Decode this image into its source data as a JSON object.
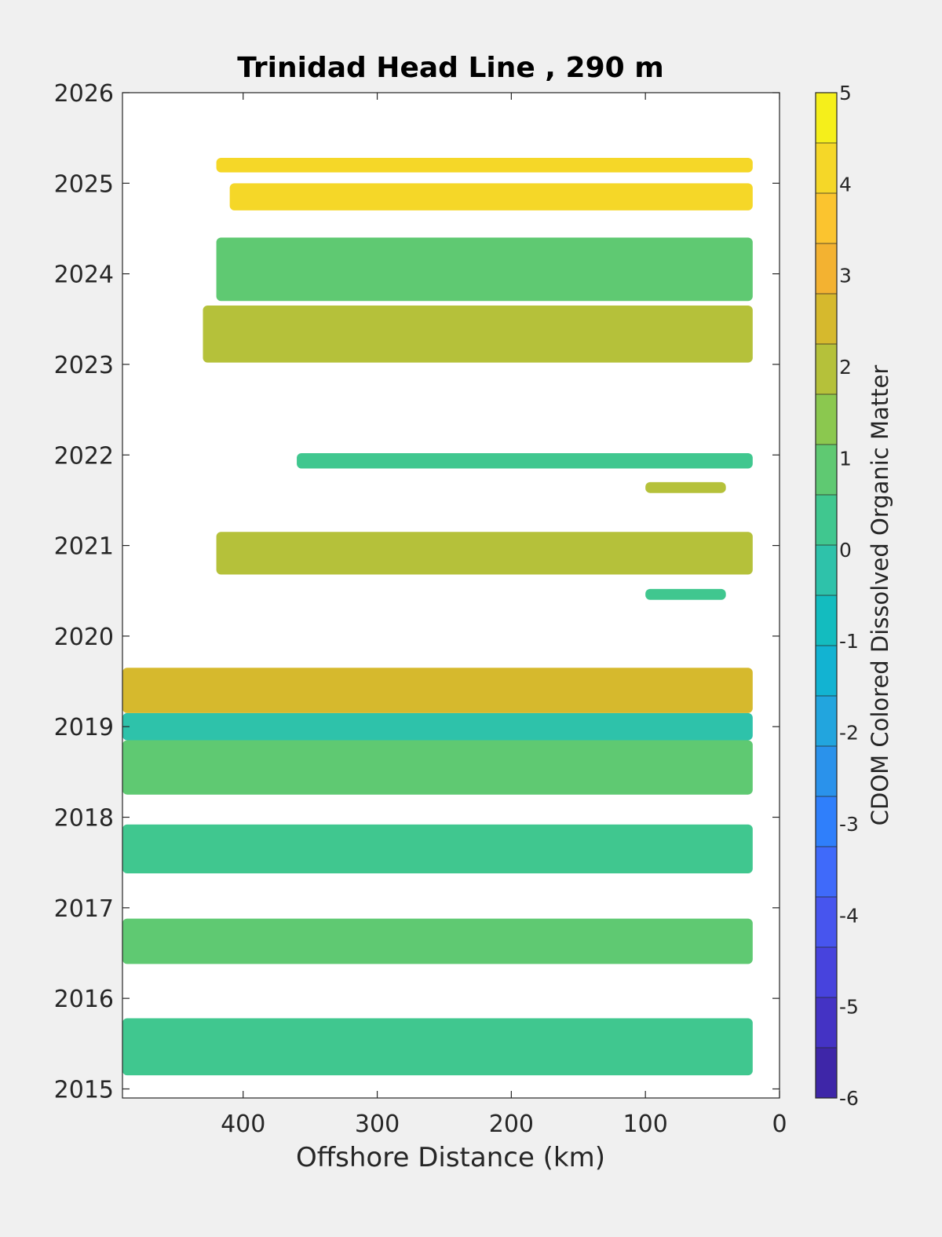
{
  "chart_data": {
    "type": "heatmap",
    "title": "Trinidad Head Line , 290 m",
    "xlabel": "Offshore Distance (km)",
    "ylabel": "",
    "xlim": [
      490,
      0
    ],
    "ylim": [
      2014.9,
      2026
    ],
    "x_axis_reversed": true,
    "xticks": [
      400,
      300,
      200,
      100,
      0
    ],
    "yticks": [
      2015,
      2016,
      2017,
      2018,
      2019,
      2020,
      2021,
      2022,
      2023,
      2024,
      2025,
      2026
    ],
    "grid": false,
    "colorbar": {
      "label": "CDOM Colored Dissolved Organic Matter",
      "range": [
        -6,
        5
      ],
      "ticks": [
        5,
        4,
        3,
        2,
        1,
        0,
        -1,
        -2,
        -3,
        -4,
        -5,
        -6
      ],
      "colors": [
        "#3e26a8",
        "#4433c4",
        "#4743dd",
        "#4755ee",
        "#3f6afa",
        "#2f7ffb",
        "#2a92eb",
        "#22a5de",
        "#12b3d2",
        "#13bcbf",
        "#2ec2aa",
        "#40c78f",
        "#5fc972",
        "#8bc84f",
        "#b5c13a",
        "#d6b92d",
        "#f3b231",
        "#fbc42f",
        "#f5d728",
        "#f5ef1b"
      ]
    },
    "bands": [
      {
        "t0": 2015.15,
        "t1": 2015.78,
        "x_far": 490,
        "x_near": 20,
        "value": 0.3
      },
      {
        "t0": 2016.38,
        "t1": 2016.88,
        "x_far": 490,
        "x_near": 20,
        "value": 0.7
      },
      {
        "t0": 2017.38,
        "t1": 2017.92,
        "x_far": 490,
        "x_near": 20,
        "value": 0.4
      },
      {
        "t0": 2018.25,
        "t1": 2018.85,
        "x_far": 490,
        "x_near": 20,
        "value": 1.0
      },
      {
        "t0": 2018.85,
        "t1": 2019.15,
        "x_far": 490,
        "x_near": 20,
        "value": -0.2
      },
      {
        "t0": 2019.15,
        "t1": 2019.65,
        "x_far": 490,
        "x_near": 20,
        "value": 2.3
      },
      {
        "t0": 2020.4,
        "t1": 2020.52,
        "x_far": 100,
        "x_near": 40,
        "value": 0.3
      },
      {
        "t0": 2020.68,
        "t1": 2021.15,
        "x_far": 420,
        "x_near": 20,
        "value": 1.8
      },
      {
        "t0": 2021.58,
        "t1": 2021.7,
        "x_far": 100,
        "x_near": 40,
        "value": 1.7
      },
      {
        "t0": 2021.85,
        "t1": 2022.02,
        "x_far": 360,
        "x_near": 20,
        "value": 0.4
      },
      {
        "t0": 2023.02,
        "t1": 2023.65,
        "x_far": 430,
        "x_near": 20,
        "value": 2.0
      },
      {
        "t0": 2023.7,
        "t1": 2024.4,
        "x_far": 420,
        "x_near": 20,
        "value": 0.8
      },
      {
        "t0": 2024.7,
        "t1": 2025.0,
        "x_far": 410,
        "x_near": 20,
        "value": 4.2
      },
      {
        "t0": 2025.12,
        "t1": 2025.28,
        "x_far": 420,
        "x_near": 20,
        "value": 3.9
      }
    ]
  }
}
